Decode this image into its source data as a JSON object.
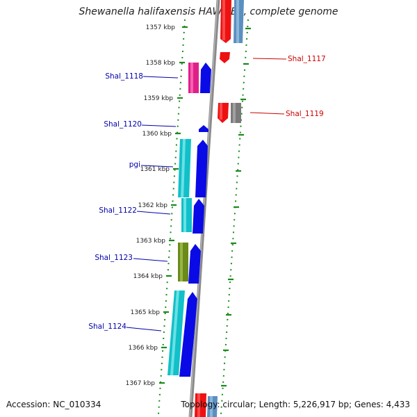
{
  "title": "Shewanella halifaxensis HAW-EB4, complete genome",
  "footer": {
    "accession": "Accession: NC_010334",
    "topology": "Topology: circular; Length: 5,226,917 bp; Genes: 4,433"
  },
  "colors": {
    "backbone": "#8a8a8a",
    "tick": "#1a8a1a",
    "label_left": "#0000aa",
    "label_right": "#cc0000",
    "red": "#ee1111",
    "steelblue": "#5a8fc0",
    "magenta": "#e0208a",
    "blue": "#0a0ae6",
    "cyan": "#11c0c8",
    "olive": "#6a8a1a",
    "gray": "#7a7a7a"
  },
  "kbp_labels": [
    "1357 kbp",
    "1358 kbp",
    "1359 kbp",
    "1360 kbp",
    "1361 kbp",
    "1362 kbp",
    "1363 kbp",
    "1364 kbp",
    "1365 kbp",
    "1366 kbp",
    "1367 kbp"
  ],
  "gene_labels_left": [
    "Shal_1118",
    "Shal_1120",
    "pgi",
    "Shal_1122",
    "Shal_1123",
    "Shal_1124"
  ],
  "gene_labels_right": [
    "Shal_1117",
    "Shal_1119"
  ]
}
